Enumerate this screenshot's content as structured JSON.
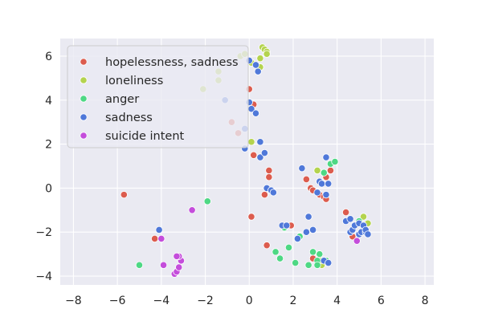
{
  "chart_data": {
    "type": "scatter",
    "title": "",
    "xlabel": "",
    "ylabel": "",
    "xlim": [
      -8.6,
      8.4
    ],
    "ylim": [
      -4.4,
      6.8
    ],
    "xticks": [
      -8,
      -6,
      -4,
      -2,
      0,
      2,
      4,
      6,
      8
    ],
    "yticks": [
      -4,
      -2,
      0,
      2,
      4,
      6
    ],
    "grid": true,
    "legend_position": "top-left",
    "series": [
      {
        "name": "hopelessness, sadness",
        "color": "#dc5c4e",
        "points": [
          [
            -5.7,
            -0.3
          ],
          [
            -4.3,
            -2.3
          ],
          [
            -3.2,
            -3.1
          ],
          [
            -0.5,
            2.5
          ],
          [
            -0.8,
            3.0
          ],
          [
            0.0,
            4.5
          ],
          [
            0.2,
            3.8
          ],
          [
            0.2,
            1.5
          ],
          [
            0.1,
            -1.3
          ],
          [
            0.7,
            -0.3
          ],
          [
            0.9,
            0.8
          ],
          [
            0.9,
            0.5
          ],
          [
            0.8,
            -2.6
          ],
          [
            1.9,
            -1.7
          ],
          [
            2.6,
            0.4
          ],
          [
            2.8,
            0.0
          ],
          [
            2.9,
            -0.1
          ],
          [
            3.1,
            0.8
          ],
          [
            3.2,
            -0.3
          ],
          [
            3.4,
            -0.4
          ],
          [
            3.5,
            -0.5
          ],
          [
            3.4,
            0.7
          ],
          [
            3.5,
            0.5
          ],
          [
            3.7,
            0.8
          ],
          [
            4.4,
            -1.1
          ],
          [
            4.7,
            -2.2
          ],
          [
            5.3,
            -1.7
          ],
          [
            3.3,
            -3.4
          ],
          [
            2.9,
            -3.2
          ]
        ]
      },
      {
        "name": "loneliness",
        "color": "#b4d34e",
        "points": [
          [
            -2.1,
            4.5
          ],
          [
            -1.4,
            5.3
          ],
          [
            -1.4,
            4.9
          ],
          [
            -0.4,
            6.0
          ],
          [
            -0.2,
            6.1
          ],
          [
            0.1,
            5.7
          ],
          [
            0.5,
            5.9
          ],
          [
            0.5,
            5.5
          ],
          [
            0.6,
            6.4
          ],
          [
            0.7,
            6.3
          ],
          [
            0.8,
            6.2
          ],
          [
            0.8,
            6.1
          ],
          [
            0.1,
            2.1
          ],
          [
            3.1,
            0.8
          ],
          [
            3.3,
            -3.5
          ],
          [
            3.2,
            -3.3
          ],
          [
            5.2,
            -1.3
          ],
          [
            5.4,
            -1.6
          ]
        ]
      },
      {
        "name": "anger",
        "color": "#4ed884",
        "points": [
          [
            -5.0,
            -3.5
          ],
          [
            -1.9,
            -0.6
          ],
          [
            1.2,
            -2.9
          ],
          [
            1.4,
            -3.2
          ],
          [
            1.6,
            -1.8
          ],
          [
            1.8,
            -2.7
          ],
          [
            2.1,
            -3.4
          ],
          [
            2.3,
            -2.2
          ],
          [
            2.7,
            -3.5
          ],
          [
            2.9,
            -2.9
          ],
          [
            3.1,
            -3.3
          ],
          [
            3.2,
            -3.0
          ],
          [
            3.1,
            -3.5
          ],
          [
            3.5,
            -3.3
          ],
          [
            3.4,
            0.7
          ],
          [
            3.7,
            1.1
          ],
          [
            3.9,
            1.2
          ],
          [
            5.0,
            -1.5
          ]
        ]
      },
      {
        "name": "sadness",
        "color": "#4f78d9",
        "points": [
          [
            -4.1,
            -1.9
          ],
          [
            -1.1,
            4.0
          ],
          [
            -0.2,
            2.7
          ],
          [
            0.0,
            3.9
          ],
          [
            0.1,
            3.6
          ],
          [
            0.0,
            5.8
          ],
          [
            0.3,
            5.6
          ],
          [
            0.4,
            5.3
          ],
          [
            0.3,
            3.4
          ],
          [
            -0.2,
            1.8
          ],
          [
            0.5,
            1.4
          ],
          [
            0.5,
            2.1
          ],
          [
            0.7,
            1.6
          ],
          [
            0.8,
            0.0
          ],
          [
            1.0,
            -0.1
          ],
          [
            1.1,
            -0.2
          ],
          [
            1.5,
            -1.7
          ],
          [
            1.7,
            -1.7
          ],
          [
            2.2,
            -2.3
          ],
          [
            2.4,
            0.9
          ],
          [
            2.6,
            -2.0
          ],
          [
            2.7,
            -1.3
          ],
          [
            2.9,
            -1.9
          ],
          [
            3.1,
            -0.2
          ],
          [
            3.2,
            0.3
          ],
          [
            3.3,
            0.2
          ],
          [
            3.5,
            -0.3
          ],
          [
            3.6,
            0.2
          ],
          [
            3.5,
            1.4
          ],
          [
            3.4,
            -3.3
          ],
          [
            3.6,
            -3.4
          ],
          [
            4.4,
            -1.5
          ],
          [
            4.6,
            -1.4
          ],
          [
            4.6,
            -2.0
          ],
          [
            4.7,
            -1.9
          ],
          [
            4.8,
            -1.7
          ],
          [
            5.0,
            -1.6
          ],
          [
            5.0,
            -2.1
          ],
          [
            5.1,
            -2.0
          ],
          [
            5.2,
            -1.7
          ],
          [
            5.3,
            -2.0
          ],
          [
            5.3,
            -1.9
          ],
          [
            5.4,
            -2.1
          ]
        ]
      },
      {
        "name": "suicide intent",
        "color": "#c44ddb",
        "points": [
          [
            -2.6,
            -1.0
          ],
          [
            -4.0,
            -2.3
          ],
          [
            -3.9,
            -3.5
          ],
          [
            -3.4,
            -3.9
          ],
          [
            -3.3,
            -3.8
          ],
          [
            -3.2,
            -3.6
          ],
          [
            -3.1,
            -3.3
          ],
          [
            -3.2,
            -3.1
          ],
          [
            -3.3,
            -3.1
          ],
          [
            4.9,
            -2.4
          ]
        ]
      }
    ]
  }
}
